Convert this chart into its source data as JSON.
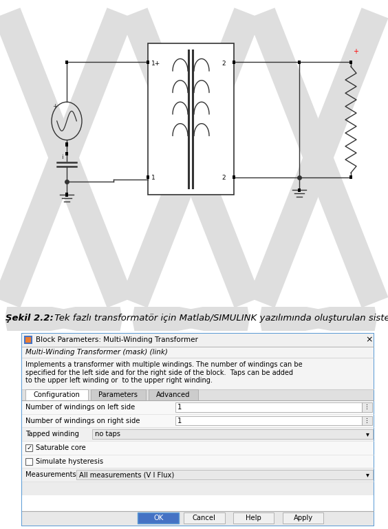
{
  "figure_width": 5.64,
  "figure_height": 7.69,
  "dpi": 100,
  "bg_color": "#ffffff",
  "caption_bold": "Şekil 2.2:",
  "caption_text": " Tek fazlı transformatör için Matlab/SIMULINK yazılımında oluşturulan sister",
  "dialog_title": "Block Parameters: Multi-Winding Transformer",
  "dialog_subtitle": "Multi-Winding Transformer (mask) (link)",
  "dialog_desc_lines": [
    "Implements a transformer with multiple windings. The number of windings can be",
    "specified for the left side and for the right side of the block.  Taps can be added",
    "to the upper left winding or  to the upper right winding."
  ],
  "tab_labels": [
    "Configuration",
    "Parameters",
    "Advanced"
  ],
  "field1_label": "Number of windings on left side",
  "field1_value": "1",
  "field2_label": "Number of windings on right side",
  "field2_value": "1",
  "tapped_label": "Tapped winding",
  "tapped_value": "no taps",
  "check1_label": "Saturable core",
  "check1_checked": true,
  "check2_label": "Simulate hysteresis",
  "check2_checked": false,
  "meas_label": "Measurements",
  "meas_value": "All measurements (V I Flux)",
  "btn_ok": "OK",
  "btn_cancel": "Cancel",
  "btn_help": "Help",
  "btn_apply": "Apply",
  "wm_color": "#dedede",
  "wire_color": "#333333",
  "dialog_outer_bg": "#ececec",
  "dialog_white": "#ffffff",
  "dialog_border_color": "#5b9bd5",
  "title_bar_bg": "#f0f0f0",
  "field_row_bg": "#f8f8f8",
  "dropdown_bg": "#e8e8e8",
  "tab_active": "#ffffff",
  "tab_inactive": "#cccccc",
  "btn_ok_bg": "#4472c4",
  "btn_ok_fg": "#ffffff",
  "btn_other_bg": "#f0f0f0",
  "btn_other_fg": "#000000"
}
